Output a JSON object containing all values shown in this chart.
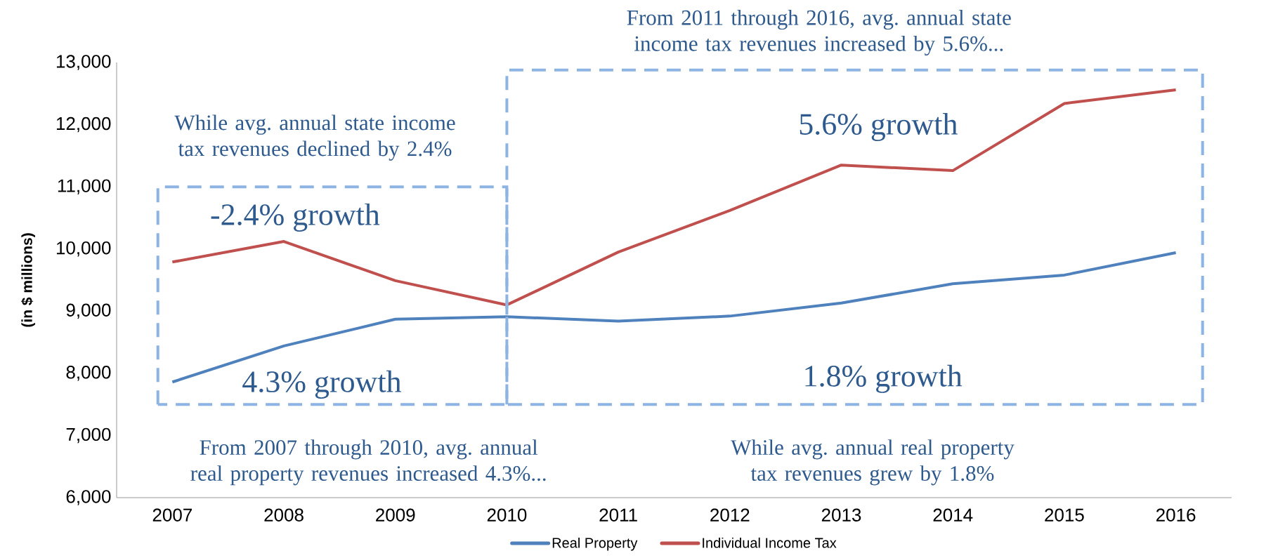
{
  "chart_data": {
    "type": "line",
    "categories": [
      "2007",
      "2008",
      "2009",
      "2010",
      "2011",
      "2012",
      "2013",
      "2014",
      "2015",
      "2016"
    ],
    "series": [
      {
        "name": "Real Property",
        "color": "#4f81bd",
        "values": [
          7860,
          8440,
          8870,
          8910,
          8840,
          8920,
          9130,
          9440,
          9580,
          9940
        ]
      },
      {
        "name": "Individual Income Tax",
        "color": "#c0504d",
        "values": [
          9790,
          10120,
          9490,
          9100,
          9950,
          10620,
          11350,
          11260,
          12340,
          12560
        ]
      }
    ],
    "ylabel": "(in $ millions)",
    "ylim": [
      6000,
      13000
    ],
    "yticks": [
      {
        "value": 6000,
        "label": "6,000"
      },
      {
        "value": 7000,
        "label": "7,000"
      },
      {
        "value": 8000,
        "label": "8,000"
      },
      {
        "value": 9000,
        "label": "9,000"
      },
      {
        "value": 10000,
        "label": "10,000"
      },
      {
        "value": 11000,
        "label": "11,000"
      },
      {
        "value": 12000,
        "label": "12,000"
      },
      {
        "value": 13000,
        "label": "13,000"
      }
    ],
    "legend": "bottom",
    "line_style": "solid",
    "annotations": [
      "From 2011 through 2016, avg. annual state income tax revenues increased by 5.6%...",
      "While avg. annual state income tax revenues declined by 2.4%",
      "-2.4% growth",
      "4.3% growth",
      "From 2007 through 2010, avg. annual real property revenues increased 4.3%...",
      "5.6% growth",
      "1.8% growth",
      "While avg. annual real property tax revenues grew by 1.8%"
    ]
  }
}
